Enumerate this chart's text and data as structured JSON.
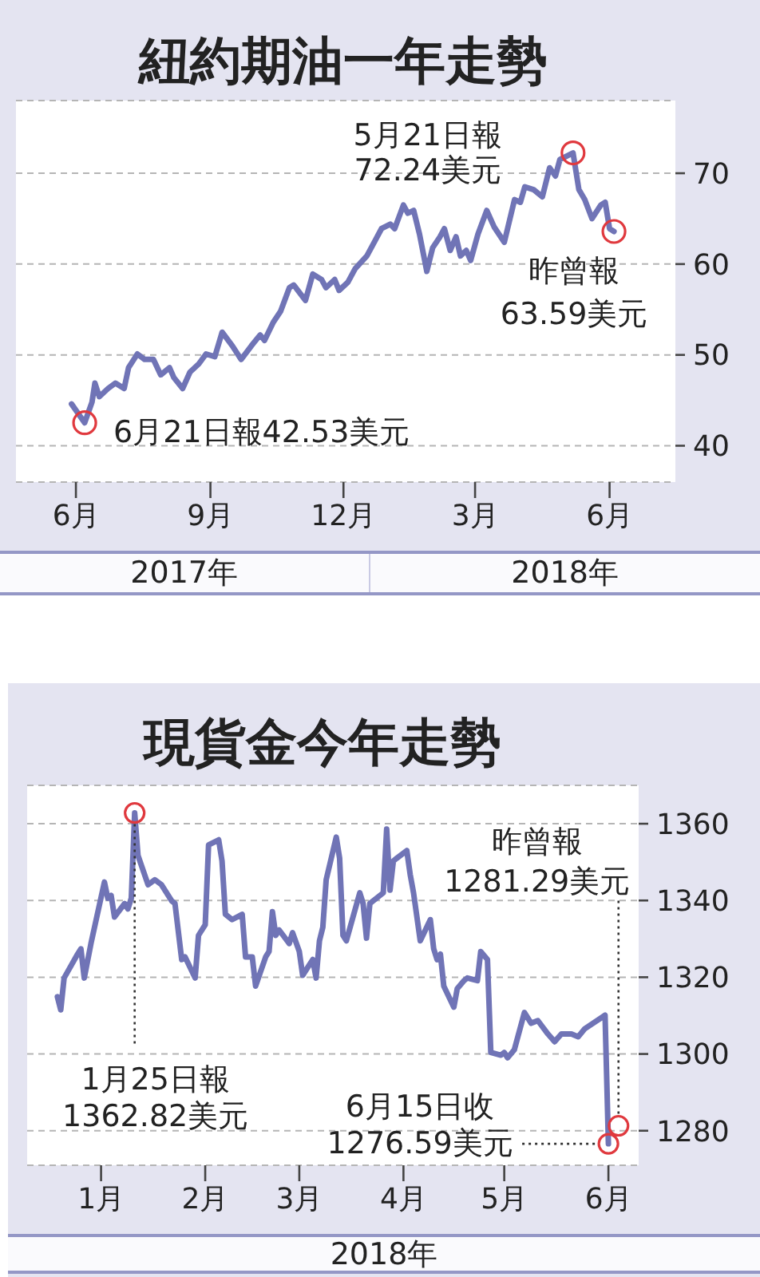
{
  "chart_data": [
    {
      "type": "line",
      "title": "紐約期油一年走勢",
      "color": "#7074b6",
      "x": [
        "2017-06-12",
        "2017-06-21",
        "2017-06-26",
        "2017-06-28",
        "2017-07-01",
        "2017-07-07",
        "2017-07-12",
        "2017-07-18",
        "2017-07-21",
        "2017-07-27",
        "2017-08-01",
        "2017-08-07",
        "2017-08-12",
        "2017-08-18",
        "2017-08-21",
        "2017-08-27",
        "2017-09-01",
        "2017-09-07",
        "2017-09-12",
        "2017-09-18",
        "2017-09-23",
        "2017-09-30",
        "2017-10-06",
        "2017-10-13",
        "2017-10-19",
        "2017-10-22",
        "2017-10-28",
        "2017-11-02",
        "2017-11-08",
        "2017-11-11",
        "2017-11-19",
        "2017-11-24",
        "2017-11-30",
        "2017-12-03",
        "2017-12-09",
        "2017-12-12",
        "2017-12-18",
        "2017-12-23",
        "2017-12-31",
        "2018-01-05",
        "2018-01-10",
        "2018-01-16",
        "2018-01-19",
        "2018-01-25",
        "2018-01-28",
        "2018-02-01",
        "2018-02-05",
        "2018-02-10",
        "2018-02-14",
        "2018-02-19",
        "2018-02-22",
        "2018-02-26",
        "2018-03-02",
        "2018-03-05",
        "2018-03-09",
        "2018-03-12",
        "2018-03-17",
        "2018-03-23",
        "2018-03-28",
        "2018-04-04",
        "2018-04-11",
        "2018-04-15",
        "2018-04-18",
        "2018-04-24",
        "2018-04-30",
        "2018-05-05",
        "2018-05-09",
        "2018-05-12",
        "2018-05-21",
        "2018-05-25",
        "2018-05-29",
        "2018-06-03",
        "2018-06-09",
        "2018-06-12",
        "2018-06-15",
        "2018-06-18"
      ],
      "values": [
        44.6,
        42.53,
        44.8,
        46.9,
        45.4,
        46.3,
        46.9,
        46.3,
        48.6,
        50.1,
        49.5,
        49.5,
        47.8,
        48.6,
        47.5,
        46.3,
        48.1,
        49.0,
        50.1,
        49.8,
        52.5,
        51.0,
        49.5,
        51.0,
        52.2,
        51.6,
        53.6,
        54.8,
        57.4,
        57.7,
        56.0,
        58.9,
        58.3,
        57.4,
        58.3,
        57.1,
        58.0,
        59.5,
        60.9,
        62.4,
        63.9,
        64.4,
        63.9,
        66.5,
        65.6,
        65.9,
        63.3,
        59.2,
        61.8,
        63.0,
        63.9,
        61.5,
        63.0,
        60.9,
        61.5,
        60.4,
        63.3,
        65.9,
        64.1,
        62.4,
        67.1,
        66.8,
        68.5,
        68.2,
        67.4,
        70.6,
        69.7,
        71.5,
        72.24,
        68.2,
        67.1,
        65.0,
        66.5,
        66.8,
        63.9,
        63.59
      ],
      "xlim": [
        "2017-05-05",
        "2018-07-30"
      ],
      "xticks": [
        {
          "value": "2017-06-15",
          "label": "6月"
        },
        {
          "value": "2017-09-15",
          "label": "9月"
        },
        {
          "value": "2017-12-15",
          "label": "12月"
        },
        {
          "value": "2018-03-15",
          "label": "3月"
        },
        {
          "value": "2018-06-15",
          "label": "6月"
        }
      ],
      "ylim": [
        36,
        78
      ],
      "yticks": [
        40,
        50,
        60,
        70
      ],
      "grid": "y",
      "annotations": [
        {
          "text": "5月21日報\n72.24美元",
          "x": "2018-05-21",
          "y": 72.24
        },
        {
          "text": "昨曾報\n63.59美元",
          "x": "2018-06-18",
          "y": 63.59
        },
        {
          "text": "6月21日報42.53美元",
          "x": "2017-06-21",
          "y": 42.53
        },
        "2017年",
        "2018年"
      ]
    },
    {
      "type": "line",
      "title": "現貨金今年走勢",
      "color": "#7074b6",
      "x": [
        "2018-01-02",
        "2018-01-03",
        "2018-01-04",
        "2018-01-08",
        "2018-01-09",
        "2018-01-10",
        "2018-01-12",
        "2018-01-16",
        "2018-01-17",
        "2018-01-18",
        "2018-01-19",
        "2018-01-22",
        "2018-01-23",
        "2018-01-24",
        "2018-01-25",
        "2018-01-26",
        "2018-01-29",
        "2018-01-31",
        "2018-02-02",
        "2018-02-05",
        "2018-02-06",
        "2018-02-08",
        "2018-02-09",
        "2018-02-12",
        "2018-02-13",
        "2018-02-15",
        "2018-02-16",
        "2018-02-19",
        "2018-02-20",
        "2018-02-21",
        "2018-02-23",
        "2018-02-26",
        "2018-02-27",
        "2018-03-01",
        "2018-03-02",
        "2018-03-05",
        "2018-03-06",
        "2018-03-07",
        "2018-03-08",
        "2018-03-09",
        "2018-03-12",
        "2018-03-13",
        "2018-03-15",
        "2018-03-16",
        "2018-03-19",
        "2018-03-20",
        "2018-03-21",
        "2018-03-22",
        "2018-03-23",
        "2018-03-26",
        "2018-03-27",
        "2018-03-28",
        "2018-03-29",
        "2018-04-02",
        "2018-04-03",
        "2018-04-04",
        "2018-04-05",
        "2018-04-09",
        "2018-04-10",
        "2018-04-11",
        "2018-04-12",
        "2018-04-13",
        "2018-04-16",
        "2018-04-17",
        "2018-04-18",
        "2018-04-20",
        "2018-04-23",
        "2018-04-24",
        "2018-04-25",
        "2018-04-26",
        "2018-04-27",
        "2018-04-30",
        "2018-05-01",
        "2018-05-03",
        "2018-05-04",
        "2018-05-07",
        "2018-05-08",
        "2018-05-10",
        "2018-05-11",
        "2018-05-14",
        "2018-05-15",
        "2018-05-16",
        "2018-05-18",
        "2018-05-21",
        "2018-05-23",
        "2018-05-25",
        "2018-05-28",
        "2018-05-30",
        "2018-06-01",
        "2018-06-04",
        "2018-06-06",
        "2018-06-08",
        "2018-06-14",
        "2018-06-15"
      ],
      "values": [
        1314.9,
        1311.5,
        1319.8,
        1326.0,
        1327.4,
        1319.8,
        1328.8,
        1344.8,
        1340.6,
        1341.3,
        1335.7,
        1339.2,
        1337.8,
        1340.6,
        1362.82,
        1351.7,
        1344.1,
        1345.4,
        1344.1,
        1339.9,
        1339.2,
        1324.6,
        1325.3,
        1319.8,
        1330.9,
        1333.7,
        1354.5,
        1355.8,
        1350.3,
        1336.4,
        1335.0,
        1336.4,
        1325.3,
        1325.3,
        1317.7,
        1325.3,
        1326.7,
        1337.1,
        1330.9,
        1332.3,
        1328.8,
        1331.6,
        1326.7,
        1320.5,
        1324.6,
        1319.8,
        1329.5,
        1333.0,
        1345.4,
        1356.5,
        1351.0,
        1330.9,
        1329.5,
        1342.0,
        1339.2,
        1330.2,
        1339.2,
        1342.0,
        1358.6,
        1342.7,
        1350.3,
        1351.0,
        1353.0,
        1346.8,
        1342.0,
        1329.5,
        1335.0,
        1327.4,
        1324.6,
        1326.0,
        1317.7,
        1312.2,
        1317.0,
        1319.1,
        1319.8,
        1319.1,
        1326.7,
        1324.6,
        1300.4,
        1299.7,
        1300.4,
        1299.0,
        1301.1,
        1310.8,
        1308.0,
        1308.7,
        1305.2,
        1303.2,
        1305.2,
        1305.2,
        1304.5,
        1306.6,
        1310.1,
        1276.59
      ],
      "xlim": [
        "2017-12-24",
        "2018-06-24"
      ],
      "xticks": [
        {
          "value": "2018-01-15",
          "label": "1月"
        },
        {
          "value": "2018-02-15",
          "label": "2月"
        },
        {
          "value": "2018-03-15",
          "label": "3月"
        },
        {
          "value": "2018-04-15",
          "label": "4月"
        },
        {
          "value": "2018-05-15",
          "label": "5月"
        },
        {
          "value": "2018-06-15",
          "label": "6月"
        }
      ],
      "ylim": [
        1271,
        1370
      ],
      "yticks": [
        1280,
        1300,
        1320,
        1340,
        1360
      ],
      "grid": "y",
      "annotations": [
        {
          "text": "1月25日報\n1362.82美元",
          "x": "2018-01-25",
          "y": 1362.82
        },
        {
          "text": "6月15日收\n1276.59美元",
          "x": "2018-06-15",
          "y": 1276.59
        },
        {
          "text": "昨曾報\n1281.29美元",
          "x": "2018-06-18",
          "y": 1281.29
        },
        "2018年"
      ]
    }
  ]
}
